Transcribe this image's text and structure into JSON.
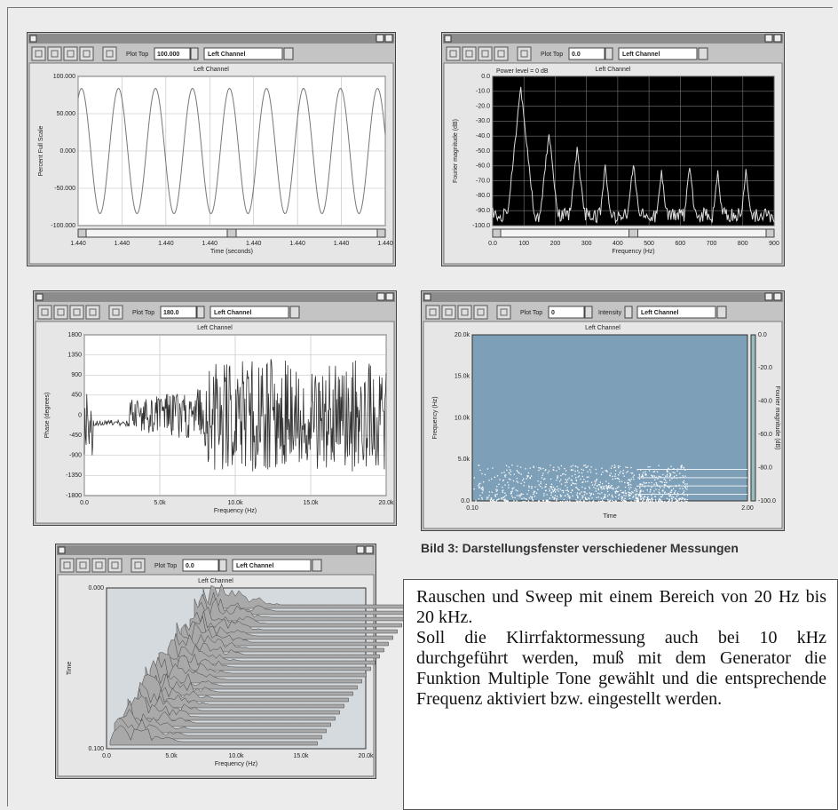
{
  "windows": [
    {
      "plot_top_label": "Plot Top",
      "plot_top": "100.000",
      "channel": "Left Channel",
      "plot_title": "Left Channel",
      "y_axis_label": "Percent Full Scale",
      "y_ticks": [
        "100.000",
        "50.000",
        "0.000",
        "-50.000",
        "-100.000"
      ],
      "x_axis_label": "Time (seconds)",
      "x_ticks": [
        "1.440",
        "1.440",
        "1.440",
        "1.440",
        "1.440",
        "1.440",
        "1.440",
        "1.440"
      ]
    },
    {
      "plot_top_label": "Plot Top",
      "plot_top": "0.0",
      "channel": "Left Channel",
      "plot_title": "Left Channel",
      "annotation": "Power level = 0 dB",
      "y_axis_label": "Fourier magnitude (dB)",
      "y_ticks": [
        "0.0",
        "-10.0",
        "-20.0",
        "-30.0",
        "-40.0",
        "-50.0",
        "-60.0",
        "-70.0",
        "-80.0",
        "-90.0",
        "-100.0"
      ],
      "x_axis_label": "Frequency (Hz)",
      "x_ticks": [
        "0.0",
        "100",
        "200",
        "300",
        "400",
        "500",
        "600",
        "700",
        "800",
        "900"
      ]
    },
    {
      "plot_top_label": "Plot Top",
      "plot_top": "180.0",
      "channel": "Left Channel",
      "plot_title": "Left Channel",
      "y_axis_label": "Phase (degrees)",
      "y_ticks": [
        "1800",
        "1350",
        "900",
        "450",
        "0",
        "-450",
        "-900",
        "-1350",
        "-1800"
      ],
      "x_axis_label": "Frequency (Hz)",
      "x_ticks": [
        "0.0",
        "5.0k",
        "10.0k",
        "15.0k",
        "20.0k"
      ]
    },
    {
      "plot_top_label": "Plot Top",
      "plot_top": "0",
      "intensity_label": "Intensity",
      "channel": "Left Channel",
      "plot_title": "Left Channel",
      "y_axis_label": "Frequency (Hz)",
      "y_ticks": [
        "20.0k",
        "15.0k",
        "10.0k",
        "5.0k",
        "0.0"
      ],
      "y2_axis_label": "Fourier magnitude (dB)",
      "y2_ticks": [
        "0.0",
        "-20.0",
        "-40.0",
        "-60.0",
        "-80.0",
        "-100.0"
      ],
      "x_axis_label": "Time",
      "x_ticks": [
        "0.10",
        "2.00"
      ]
    },
    {
      "plot_top_label": "Plot Top",
      "plot_top": "0.0",
      "channel": "Left Channel",
      "plot_title": "Left Channel",
      "y_axis_label": "Time",
      "y_ticks": [
        "0.000",
        "0.100"
      ],
      "x_axis_label": "Frequency (Hz)",
      "x_ticks": [
        "0.0",
        "5.0k",
        "10.0k",
        "15.0k",
        "20.0k"
      ]
    }
  ],
  "caption": "Bild 3: Darstellungsfenster verschiedener Messungen",
  "body_text": [
    "Rauschen und Sweep mit einem Bereich von 20 Hz bis 20 kHz.",
    "Soll die Klirrfaktormessung auch bei 10 kHz durchgeführt werden, muß mit dem Generator die Funktion Multiple Tone gewählt und die entsprechende Frequenz aktiviert bzw. eingestellt werden."
  ]
}
